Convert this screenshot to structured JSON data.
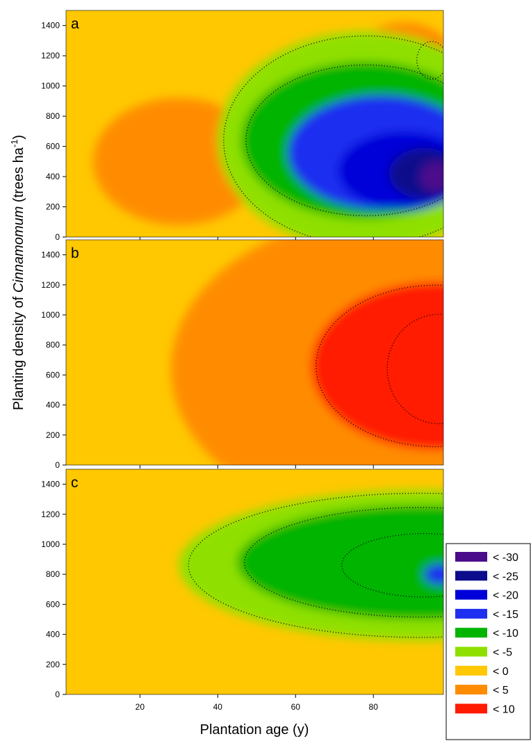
{
  "chart_data": {
    "type": "heatmap",
    "title": "",
    "xlabel": "Plantation age (y)",
    "ylabel_parts": [
      "Planting density of ",
      "Cinnamomum",
      " (trees ha",
      "-1",
      ")"
    ],
    "xlim": [
      1,
      98
    ],
    "ylim": [
      0,
      1500
    ],
    "x_ticks": [
      20,
      40,
      60,
      80
    ],
    "x_tick_labels": [
      "20",
      "40",
      "60",
      "80"
    ],
    "y_ticks": [
      0,
      200,
      400,
      600,
      800,
      1000,
      1200,
      1400
    ],
    "y_tick_labels": [
      "0",
      "200",
      "400",
      "600",
      "800",
      "1000",
      "1200",
      "1400"
    ],
    "contour_lines": "dotted black",
    "legend_position": "right",
    "legend": [
      {
        "label": "< -30",
        "color": "#4b0c8c"
      },
      {
        "label": "< -25",
        "color": "#0c0c8c"
      },
      {
        "label": "< -20",
        "color": "#0000d8"
      },
      {
        "label": "< -15",
        "color": "#1f2ff0"
      },
      {
        "label": "< -10",
        "color": "#00b400"
      },
      {
        "label": "< -5",
        "color": "#8fe000"
      },
      {
        "label": "< 0",
        "color": "#ffc800"
      },
      {
        "label": "< 5",
        "color": "#ff8c00"
      },
      {
        "label": "< 10",
        "color": "#ff1a00"
      }
    ],
    "panels": [
      {
        "label": "a",
        "background_class": 6,
        "blobs": [
          {
            "class": 7,
            "cx": 30,
            "cy": 500,
            "rx": 22,
            "ry": 420
          },
          {
            "class": 7,
            "cx": 88,
            "cy": 1200,
            "rx": 12,
            "ry": 220
          },
          {
            "class": 8,
            "cx": 95,
            "cy": 1170,
            "rx": 4,
            "ry": 130
          },
          {
            "class": 5,
            "cx": 78,
            "cy": 640,
            "rx": 38,
            "ry": 720
          },
          {
            "class": 4,
            "cx": 78,
            "cy": 640,
            "rx": 32,
            "ry": 520
          },
          {
            "class": 3,
            "cx": 82,
            "cy": 560,
            "rx": 24,
            "ry": 380
          },
          {
            "class": 2,
            "cx": 88,
            "cy": 440,
            "rx": 17,
            "ry": 260
          },
          {
            "class": 1,
            "cx": 93,
            "cy": 420,
            "rx": 9,
            "ry": 170
          },
          {
            "class": 0,
            "cx": 96,
            "cy": 400,
            "rx": 4,
            "ry": 100
          }
        ]
      },
      {
        "label": "b",
        "background_class": 6,
        "blobs": [
          {
            "class": 7,
            "cx": 88,
            "cy": 640,
            "rx": 60,
            "ry": 1050
          },
          {
            "class": 8,
            "cx": 96,
            "cy": 660,
            "rx": 32,
            "ry": 560
          },
          {
            "class": 8,
            "cx": 97,
            "cy": 640,
            "rx": 14,
            "ry": 380
          }
        ]
      },
      {
        "label": "c",
        "background_class": 6,
        "blobs": [
          {
            "class": 5,
            "cx": 92,
            "cy": 860,
            "rx": 62,
            "ry": 500
          },
          {
            "class": 4,
            "cx": 92,
            "cy": 880,
            "rx": 47,
            "ry": 380
          },
          {
            "class": 4,
            "cx": 93,
            "cy": 860,
            "rx": 22,
            "ry": 220
          },
          {
            "class": 3,
            "cx": 97,
            "cy": 800,
            "rx": 4,
            "ry": 70
          }
        ]
      }
    ]
  }
}
